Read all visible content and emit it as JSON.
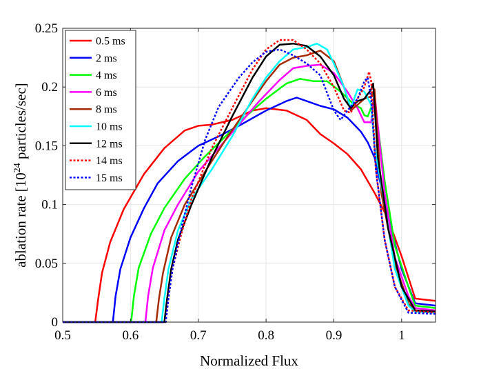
{
  "chart_data": {
    "type": "line",
    "title": "",
    "xlabel": "Normalized Flux",
    "ylabel": "ablation rate [10",
    "ylabel_sup": "24",
    "ylabel_suffix": " particles/sec]",
    "xlim": [
      0.5,
      1.05
    ],
    "ylim": [
      0,
      0.25
    ],
    "xticks": [
      0.5,
      0.6,
      0.7,
      0.8,
      0.9,
      1
    ],
    "xtick_labels": [
      "0.5",
      "0.6",
      "0.7",
      "0.8",
      "0.9",
      "1"
    ],
    "yticks": [
      0,
      0.05,
      0.1,
      0.15,
      0.2,
      0.25
    ],
    "ytick_labels": [
      "0",
      "0.05",
      "0.1",
      "0.15",
      "0.2",
      "0.25"
    ],
    "legend_position": "top-left",
    "series": [
      {
        "name": "0.5 ms",
        "color": "#ff0000",
        "dash": "solid",
        "points": [
          [
            0.5,
            0
          ],
          [
            0.548,
            0
          ],
          [
            0.552,
            0.018
          ],
          [
            0.558,
            0.042
          ],
          [
            0.57,
            0.068
          ],
          [
            0.59,
            0.096
          ],
          [
            0.62,
            0.126
          ],
          [
            0.65,
            0.148
          ],
          [
            0.68,
            0.163
          ],
          [
            0.7,
            0.167
          ],
          [
            0.72,
            0.168
          ],
          [
            0.75,
            0.172
          ],
          [
            0.78,
            0.18
          ],
          [
            0.8,
            0.182
          ],
          [
            0.83,
            0.18
          ],
          [
            0.86,
            0.172
          ],
          [
            0.88,
            0.16
          ],
          [
            0.9,
            0.152
          ],
          [
            0.92,
            0.143
          ],
          [
            0.94,
            0.13
          ],
          [
            0.96,
            0.11
          ],
          [
            0.98,
            0.088
          ],
          [
            1.0,
            0.056
          ],
          [
            1.02,
            0.02
          ],
          [
            1.05,
            0.018
          ]
        ]
      },
      {
        "name": "2 ms",
        "color": "#0000ff",
        "dash": "solid",
        "points": [
          [
            0.5,
            0
          ],
          [
            0.574,
            0
          ],
          [
            0.578,
            0.022
          ],
          [
            0.585,
            0.045
          ],
          [
            0.6,
            0.072
          ],
          [
            0.62,
            0.097
          ],
          [
            0.64,
            0.118
          ],
          [
            0.67,
            0.137
          ],
          [
            0.7,
            0.15
          ],
          [
            0.73,
            0.158
          ],
          [
            0.76,
            0.167
          ],
          [
            0.8,
            0.18
          ],
          [
            0.83,
            0.188
          ],
          [
            0.845,
            0.191
          ],
          [
            0.86,
            0.188
          ],
          [
            0.88,
            0.184
          ],
          [
            0.9,
            0.181
          ],
          [
            0.92,
            0.174
          ],
          [
            0.94,
            0.162
          ],
          [
            0.95,
            0.153
          ],
          [
            0.96,
            0.14
          ],
          [
            0.98,
            0.09
          ],
          [
            1.0,
            0.045
          ],
          [
            1.02,
            0.016
          ],
          [
            1.05,
            0.014
          ]
        ]
      },
      {
        "name": "4 ms",
        "color": "#00ff00",
        "dash": "solid",
        "points": [
          [
            0.5,
            0
          ],
          [
            0.601,
            0
          ],
          [
            0.605,
            0.022
          ],
          [
            0.612,
            0.046
          ],
          [
            0.63,
            0.075
          ],
          [
            0.65,
            0.097
          ],
          [
            0.68,
            0.122
          ],
          [
            0.71,
            0.141
          ],
          [
            0.74,
            0.158
          ],
          [
            0.77,
            0.175
          ],
          [
            0.8,
            0.19
          ],
          [
            0.83,
            0.203
          ],
          [
            0.85,
            0.207
          ],
          [
            0.87,
            0.205
          ],
          [
            0.89,
            0.205
          ],
          [
            0.91,
            0.196
          ],
          [
            0.93,
            0.185
          ],
          [
            0.94,
            0.182
          ],
          [
            0.945,
            0.176
          ],
          [
            0.95,
            0.175
          ],
          [
            0.96,
            0.19
          ],
          [
            0.975,
            0.12
          ],
          [
            0.99,
            0.065
          ],
          [
            1.01,
            0.03
          ],
          [
            1.02,
            0.014
          ],
          [
            1.05,
            0.012
          ]
        ]
      },
      {
        "name": "6 ms",
        "color": "#ff00ff",
        "dash": "solid",
        "points": [
          [
            0.5,
            0
          ],
          [
            0.622,
            0
          ],
          [
            0.626,
            0.022
          ],
          [
            0.633,
            0.046
          ],
          [
            0.65,
            0.078
          ],
          [
            0.67,
            0.1
          ],
          [
            0.7,
            0.128
          ],
          [
            0.73,
            0.148
          ],
          [
            0.76,
            0.168
          ],
          [
            0.79,
            0.188
          ],
          [
            0.82,
            0.206
          ],
          [
            0.84,
            0.216
          ],
          [
            0.86,
            0.218
          ],
          [
            0.88,
            0.219
          ],
          [
            0.9,
            0.212
          ],
          [
            0.92,
            0.196
          ],
          [
            0.935,
            0.182
          ],
          [
            0.945,
            0.17
          ],
          [
            0.955,
            0.17
          ],
          [
            0.96,
            0.195
          ],
          [
            0.975,
            0.11
          ],
          [
            0.99,
            0.055
          ],
          [
            1.01,
            0.022
          ],
          [
            1.02,
            0.012
          ],
          [
            1.05,
            0.01
          ]
        ]
      },
      {
        "name": "8 ms",
        "color": "#a52a00",
        "dash": "solid",
        "points": [
          [
            0.5,
            0
          ],
          [
            0.638,
            0
          ],
          [
            0.642,
            0.02
          ],
          [
            0.648,
            0.042
          ],
          [
            0.66,
            0.072
          ],
          [
            0.68,
            0.1
          ],
          [
            0.71,
            0.128
          ],
          [
            0.74,
            0.155
          ],
          [
            0.77,
            0.18
          ],
          [
            0.8,
            0.205
          ],
          [
            0.82,
            0.219
          ],
          [
            0.84,
            0.225
          ],
          [
            0.86,
            0.227
          ],
          [
            0.88,
            0.231
          ],
          [
            0.9,
            0.222
          ],
          [
            0.915,
            0.2
          ],
          [
            0.925,
            0.18
          ],
          [
            0.935,
            0.185
          ],
          [
            0.945,
            0.19
          ],
          [
            0.955,
            0.192
          ],
          [
            0.96,
            0.198
          ],
          [
            0.97,
            0.11
          ],
          [
            0.99,
            0.05
          ],
          [
            1.01,
            0.016
          ],
          [
            1.02,
            0.01
          ],
          [
            1.05,
            0.009
          ]
        ]
      },
      {
        "name": "10 ms",
        "color": "#00ffff",
        "dash": "solid",
        "points": [
          [
            0.5,
            0
          ],
          [
            0.646,
            0
          ],
          [
            0.65,
            0.02
          ],
          [
            0.656,
            0.045
          ],
          [
            0.67,
            0.078
          ],
          [
            0.69,
            0.105
          ],
          [
            0.72,
            0.13
          ],
          [
            0.75,
            0.158
          ],
          [
            0.78,
            0.19
          ],
          [
            0.8,
            0.208
          ],
          [
            0.82,
            0.222
          ],
          [
            0.84,
            0.232
          ],
          [
            0.86,
            0.234
          ],
          [
            0.875,
            0.237
          ],
          [
            0.89,
            0.232
          ],
          [
            0.9,
            0.22
          ],
          [
            0.915,
            0.2
          ],
          [
            0.925,
            0.182
          ],
          [
            0.935,
            0.198
          ],
          [
            0.945,
            0.196
          ],
          [
            0.955,
            0.185
          ],
          [
            0.96,
            0.15
          ],
          [
            0.975,
            0.1
          ],
          [
            0.99,
            0.045
          ],
          [
            1.01,
            0.014
          ],
          [
            1.02,
            0.009
          ],
          [
            1.05,
            0.008
          ]
        ]
      },
      {
        "name": "12 ms",
        "color": "#000000",
        "dash": "solid",
        "points": [
          [
            0.5,
            0
          ],
          [
            0.65,
            0
          ],
          [
            0.654,
            0.02
          ],
          [
            0.66,
            0.045
          ],
          [
            0.67,
            0.07
          ],
          [
            0.69,
            0.1
          ],
          [
            0.72,
            0.14
          ],
          [
            0.75,
            0.175
          ],
          [
            0.78,
            0.208
          ],
          [
            0.8,
            0.226
          ],
          [
            0.82,
            0.236
          ],
          [
            0.84,
            0.237
          ],
          [
            0.86,
            0.235
          ],
          [
            0.88,
            0.226
          ],
          [
            0.9,
            0.21
          ],
          [
            0.915,
            0.19
          ],
          [
            0.925,
            0.182
          ],
          [
            0.935,
            0.188
          ],
          [
            0.945,
            0.19
          ],
          [
            0.955,
            0.198
          ],
          [
            0.958,
            0.203
          ],
          [
            0.965,
            0.14
          ],
          [
            0.98,
            0.08
          ],
          [
            1.0,
            0.03
          ],
          [
            1.02,
            0.01
          ],
          [
            1.05,
            0.009
          ]
        ]
      },
      {
        "name": "14 ms",
        "color": "#ff0000",
        "dash": "dotted",
        "points": [
          [
            0.5,
            0
          ],
          [
            0.652,
            0
          ],
          [
            0.656,
            0.02
          ],
          [
            0.662,
            0.045
          ],
          [
            0.675,
            0.075
          ],
          [
            0.69,
            0.105
          ],
          [
            0.72,
            0.148
          ],
          [
            0.75,
            0.182
          ],
          [
            0.78,
            0.215
          ],
          [
            0.8,
            0.232
          ],
          [
            0.82,
            0.24
          ],
          [
            0.84,
            0.24
          ],
          [
            0.86,
            0.232
          ],
          [
            0.88,
            0.22
          ],
          [
            0.9,
            0.2
          ],
          [
            0.915,
            0.18
          ],
          [
            0.925,
            0.178
          ],
          [
            0.935,
            0.19
          ],
          [
            0.945,
            0.2
          ],
          [
            0.952,
            0.213
          ],
          [
            0.955,
            0.205
          ],
          [
            0.962,
            0.13
          ],
          [
            0.975,
            0.07
          ],
          [
            0.99,
            0.03
          ],
          [
            1.01,
            0.01
          ],
          [
            1.05,
            0.008
          ]
        ]
      },
      {
        "name": "15 ms",
        "color": "#0000ff",
        "dash": "dotted",
        "points": [
          [
            0.5,
            0
          ],
          [
            0.652,
            0
          ],
          [
            0.656,
            0.02
          ],
          [
            0.662,
            0.045
          ],
          [
            0.675,
            0.08
          ],
          [
            0.69,
            0.115
          ],
          [
            0.71,
            0.155
          ],
          [
            0.73,
            0.183
          ],
          [
            0.76,
            0.208
          ],
          [
            0.78,
            0.221
          ],
          [
            0.8,
            0.23
          ],
          [
            0.82,
            0.232
          ],
          [
            0.84,
            0.227
          ],
          [
            0.86,
            0.22
          ],
          [
            0.88,
            0.21
          ],
          [
            0.9,
            0.18
          ],
          [
            0.91,
            0.172
          ],
          [
            0.92,
            0.18
          ],
          [
            0.935,
            0.19
          ],
          [
            0.945,
            0.205
          ],
          [
            0.95,
            0.208
          ],
          [
            0.955,
            0.19
          ],
          [
            0.962,
            0.13
          ],
          [
            0.975,
            0.07
          ],
          [
            0.99,
            0.03
          ],
          [
            1.01,
            0.008
          ],
          [
            1.05,
            0.007
          ]
        ]
      }
    ]
  }
}
